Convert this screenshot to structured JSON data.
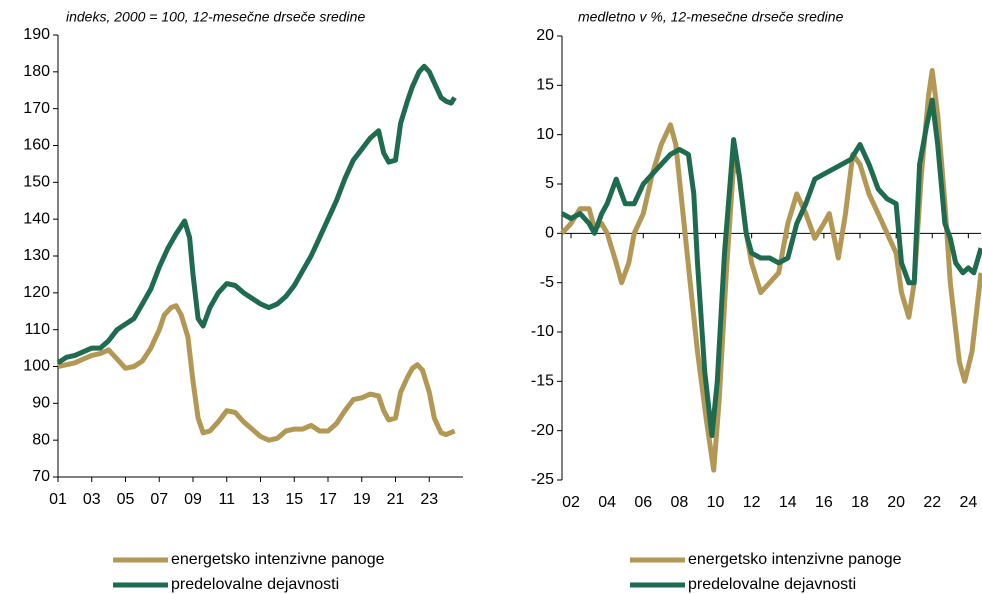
{
  "chart_data": [
    {
      "type": "line",
      "title": "indeks, 2000 = 100, 12-mesečne drseče sredine",
      "xlim": [
        2001,
        2025
      ],
      "ylim": [
        70,
        190
      ],
      "xticks": [
        {
          "value": 2001,
          "label": "01"
        },
        {
          "value": 2003,
          "label": "03"
        },
        {
          "value": 2005,
          "label": "05"
        },
        {
          "value": 2007,
          "label": "07"
        },
        {
          "value": 2009,
          "label": "09"
        },
        {
          "value": 2011,
          "label": "11"
        },
        {
          "value": 2013,
          "label": "13"
        },
        {
          "value": 2015,
          "label": "15"
        },
        {
          "value": 2017,
          "label": "17"
        },
        {
          "value": 2019,
          "label": "19"
        },
        {
          "value": 2021,
          "label": "21"
        },
        {
          "value": 2023,
          "label": "23"
        }
      ],
      "yticks": [
        70,
        80,
        90,
        100,
        110,
        120,
        130,
        140,
        150,
        160,
        170,
        180,
        190
      ],
      "series": [
        {
          "name": "energetsko intenzivne panoge",
          "color": "#b39755",
          "x": [
            2001,
            2001.5,
            2002,
            2002.5,
            2003,
            2003.5,
            2004,
            2004.5,
            2005,
            2005.5,
            2006,
            2006.5,
            2007,
            2007.3,
            2007.7,
            2008,
            2008.3,
            2008.7,
            2009,
            2009.3,
            2009.6,
            2010,
            2010.5,
            2011,
            2011.5,
            2012,
            2012.5,
            2013,
            2013.5,
            2014,
            2014.5,
            2015,
            2015.5,
            2016,
            2016.5,
            2017,
            2017.5,
            2018,
            2018.5,
            2019,
            2019.5,
            2020,
            2020.3,
            2020.6,
            2021,
            2021.3,
            2021.7,
            2022,
            2022.3,
            2022.6,
            2023,
            2023.3,
            2023.7,
            2024,
            2024.5
          ],
          "values": [
            100,
            100.5,
            101,
            102,
            103,
            103.5,
            104.5,
            102,
            99.5,
            100,
            101.5,
            105,
            110,
            114,
            116,
            116.5,
            114,
            108,
            96,
            86,
            82,
            82.5,
            85,
            88,
            87.5,
            85,
            83,
            81,
            80,
            80.5,
            82.5,
            83,
            83,
            84,
            82.5,
            82.5,
            84.5,
            88,
            91,
            91.5,
            92.5,
            92,
            88,
            85.5,
            86,
            93,
            97,
            99.5,
            100.5,
            99,
            93,
            86,
            82,
            81.5,
            82.5
          ]
        },
        {
          "name": "predelovalne dejavnosti",
          "color": "#1e6b4f",
          "x": [
            2001,
            2001.5,
            2002,
            2002.5,
            2003,
            2003.5,
            2004,
            2004.5,
            2005,
            2005.5,
            2006,
            2006.5,
            2007,
            2007.5,
            2008,
            2008.5,
            2008.8,
            2009,
            2009.3,
            2009.6,
            2010,
            2010.5,
            2011,
            2011.5,
            2012,
            2012.5,
            2013,
            2013.5,
            2014,
            2014.5,
            2015,
            2015.5,
            2016,
            2016.5,
            2017,
            2017.5,
            2018,
            2018.5,
            2019,
            2019.5,
            2020,
            2020.3,
            2020.6,
            2021,
            2021.3,
            2021.7,
            2022,
            2022.4,
            2022.7,
            2023,
            2023.3,
            2023.7,
            2024,
            2024.3,
            2024.5
          ],
          "values": [
            101,
            102.5,
            103,
            104,
            105,
            105,
            107,
            110,
            111.5,
            113,
            117,
            121,
            127,
            132,
            136,
            139.5,
            135,
            125,
            113,
            111,
            116,
            120,
            122.5,
            122,
            120,
            118.5,
            117,
            116,
            117,
            119,
            122,
            126,
            130,
            135,
            140,
            145,
            151,
            156,
            159,
            162,
            164,
            158,
            155.5,
            156,
            166,
            172,
            176,
            180,
            181.5,
            180,
            177,
            173,
            172,
            171.5,
            173
          ]
        }
      ]
    },
    {
      "type": "line",
      "title": "medletno v %, 12-mesečne drseče sredine",
      "xlim": [
        2001.5,
        2024.7
      ],
      "ylim": [
        -25,
        20
      ],
      "xticks": [
        {
          "value": 2002,
          "label": "02"
        },
        {
          "value": 2004,
          "label": "04"
        },
        {
          "value": 2006,
          "label": "06"
        },
        {
          "value": 2008,
          "label": "08"
        },
        {
          "value": 2010,
          "label": "10"
        },
        {
          "value": 2012,
          "label": "12"
        },
        {
          "value": 2014,
          "label": "14"
        },
        {
          "value": 2016,
          "label": "16"
        },
        {
          "value": 2018,
          "label": "18"
        },
        {
          "value": 2020,
          "label": "20"
        },
        {
          "value": 2022,
          "label": "22"
        },
        {
          "value": 2024,
          "label": "24"
        }
      ],
      "yticks": [
        -25,
        -20,
        -15,
        -10,
        -5,
        0,
        5,
        10,
        15,
        20
      ],
      "series": [
        {
          "name": "energetsko intenzivne panoge",
          "color": "#b39755",
          "x": [
            2001.5,
            2002,
            2002.5,
            2003,
            2003.3,
            2003.7,
            2004,
            2004.5,
            2004.8,
            2005.2,
            2005.5,
            2006,
            2006.5,
            2007,
            2007.5,
            2007.8,
            2008.2,
            2008.6,
            2009,
            2009.5,
            2009.9,
            2010.2,
            2010.6,
            2011,
            2011.3,
            2011.7,
            2012,
            2012.5,
            2013,
            2013.5,
            2014,
            2014.5,
            2015,
            2015.5,
            2016,
            2016.3,
            2016.8,
            2017.2,
            2017.6,
            2018,
            2018.5,
            2019,
            2019.5,
            2020,
            2020.3,
            2020.7,
            2021,
            2021.4,
            2021.8,
            2022,
            2022.3,
            2022.7,
            2023,
            2023.5,
            2023.8,
            2024.2,
            2024.7
          ],
          "values": [
            0,
            1,
            2.5,
            2.5,
            0.5,
            1,
            0,
            -3,
            -5,
            -3,
            0,
            2,
            6,
            9,
            11,
            9,
            2,
            -5,
            -12,
            -19,
            -24,
            -17,
            -4,
            7,
            6,
            0,
            -3,
            -6,
            -5,
            -4,
            1,
            4,
            2,
            -0.5,
            1,
            2,
            -2.5,
            2,
            8,
            7,
            4,
            2,
            0,
            -2,
            -6,
            -8.5,
            -5,
            6,
            14,
            16.5,
            12,
            3,
            -5,
            -13,
            -15,
            -12,
            -4
          ]
        },
        {
          "name": "predelovalne dejavnosti",
          "color": "#1e6b4f",
          "x": [
            2001.5,
            2002,
            2002.5,
            2003,
            2003.3,
            2003.7,
            2004,
            2004.5,
            2004.8,
            2005,
            2005.5,
            2006,
            2006.5,
            2007,
            2007.5,
            2008,
            2008.5,
            2008.8,
            2009,
            2009.4,
            2009.8,
            2010.1,
            2010.5,
            2011,
            2011.3,
            2011.7,
            2012,
            2012.5,
            2013,
            2013.5,
            2014,
            2014.5,
            2015,
            2015.5,
            2016,
            2016.5,
            2017,
            2017.5,
            2018,
            2018.5,
            2019,
            2019.5,
            2020,
            2020.3,
            2020.7,
            2021,
            2021.3,
            2021.7,
            2022,
            2022.3,
            2022.7,
            2023,
            2023.3,
            2023.7,
            2024,
            2024.3,
            2024.7
          ],
          "values": [
            2,
            1.5,
            2,
            1,
            0,
            2,
            3,
            5.5,
            4,
            3,
            3,
            5,
            6,
            7,
            8,
            8.5,
            8,
            4,
            -3,
            -14,
            -20.5,
            -15,
            -2,
            9.5,
            6,
            0,
            -2,
            -2.5,
            -2.5,
            -3,
            -2.5,
            1,
            3,
            5.5,
            6,
            6.5,
            7,
            7.5,
            9,
            7,
            4.5,
            3.5,
            3,
            -3,
            -5,
            -5,
            7,
            11,
            13.5,
            9,
            1,
            -0.5,
            -3,
            -4,
            -3.5,
            -4,
            -1.5
          ]
        }
      ]
    }
  ]
}
